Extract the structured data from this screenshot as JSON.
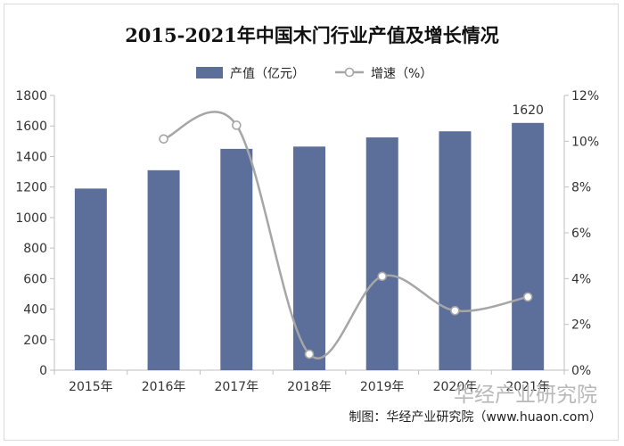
{
  "chart_data": {
    "type": "bar",
    "title": "2015-2021年中国木门行业产值及增长情况",
    "categories": [
      "2015年",
      "2016年",
      "2017年",
      "2018年",
      "2019年",
      "2020年",
      "2021年"
    ],
    "series": [
      {
        "name": "产值（亿元）",
        "type": "bar",
        "axis": "left",
        "color": "#5b6f9a",
        "values": [
          1190,
          1310,
          1450,
          1465,
          1525,
          1565,
          1620
        ]
      },
      {
        "name": "增速（%）",
        "type": "line",
        "axis": "right",
        "color": "#a6a6a6",
        "values": [
          null,
          10.1,
          10.7,
          0.7,
          4.1,
          2.6,
          3.2
        ]
      }
    ],
    "data_labels": [
      {
        "category": "2021年",
        "series": "产值（亿元）",
        "text": "1620"
      }
    ],
    "y_left": {
      "min": 0,
      "max": 1800,
      "step": 200,
      "ticks": [
        "0",
        "200",
        "400",
        "600",
        "800",
        "1000",
        "1200",
        "1400",
        "1600",
        "1800"
      ]
    },
    "y_right": {
      "min": 0,
      "max": 12,
      "step": 2,
      "ticks": [
        "0%",
        "2%",
        "4%",
        "6%",
        "8%",
        "10%",
        "12%"
      ]
    },
    "legend_position": "top-center",
    "grid": false
  },
  "source": "制图：华经产业研究院（www.huaon.com）",
  "watermark": "华经产业研究院"
}
